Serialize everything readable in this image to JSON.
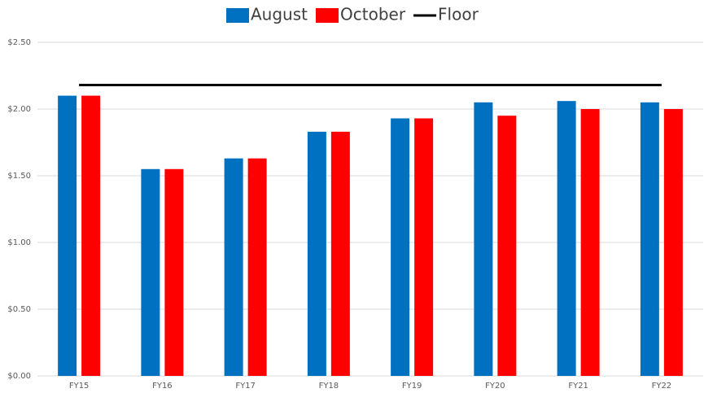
{
  "chart_data": {
    "type": "bar",
    "categories": [
      "FY15",
      "FY16",
      "FY17",
      "FY18",
      "FY19",
      "FY20",
      "FY21",
      "FY22"
    ],
    "series": [
      {
        "name": "August",
        "color": "#0070c0",
        "values": [
          2.1,
          1.55,
          1.63,
          1.83,
          1.93,
          2.05,
          2.06,
          2.05
        ]
      },
      {
        "name": "October",
        "color": "#ff0000",
        "values": [
          2.1,
          1.55,
          1.63,
          1.83,
          1.93,
          1.95,
          2.0,
          2.0
        ]
      },
      {
        "name": "Floor",
        "type": "line",
        "color": "#000000",
        "values": [
          2.18,
          2.18,
          2.18,
          2.18,
          2.18,
          2.18,
          2.18,
          2.18
        ]
      }
    ],
    "ylim": [
      0,
      2.5
    ],
    "yticks": [
      {
        "value": 0,
        "label": "$0.00"
      },
      {
        "value": 0.5,
        "label": "$0.50"
      },
      {
        "value": 1,
        "label": "$1.00"
      },
      {
        "value": 1.5,
        "label": "$1.50"
      },
      {
        "value": 2,
        "label": "$2.00"
      },
      {
        "value": 2.5,
        "label": "$2.50"
      }
    ],
    "grid": true,
    "legend": "top"
  }
}
